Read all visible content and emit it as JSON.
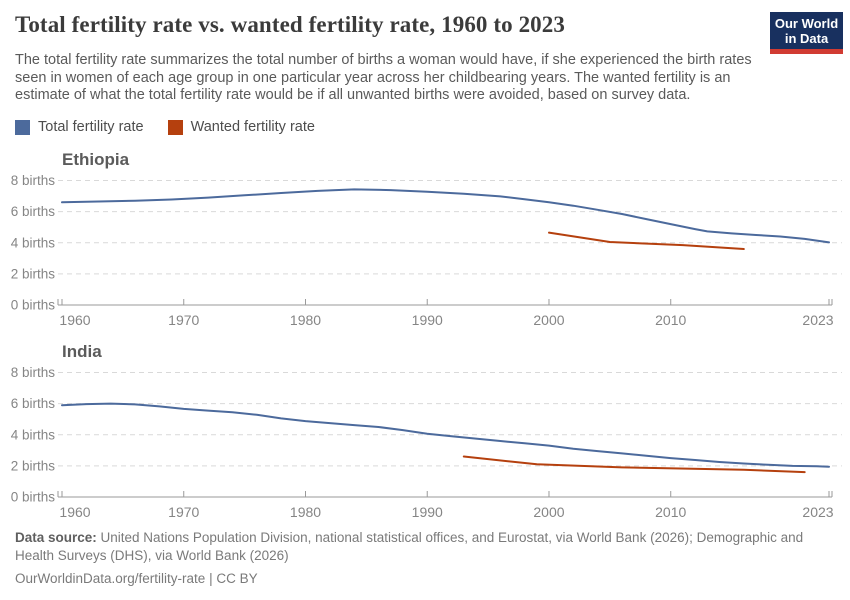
{
  "header": {
    "title": "Total fertility rate vs. wanted fertility rate, 1960 to 2023",
    "subtitle": "The total fertility rate summarizes the total number of births a woman would have, if she experienced the birth rates seen in women of each age group in one particular year across her childbearing years. The wanted fertility is an estimate of what the total fertility rate would be if all unwanted births were avoided, based on survey data.",
    "logo": {
      "line1": "Our World",
      "line2": "in Data",
      "bg_color": "#18305f",
      "bar_color": "#d13b32"
    }
  },
  "legend": [
    {
      "label": "Total fertility rate",
      "color": "#4C6A9C"
    },
    {
      "label": "Wanted fertility rate",
      "color": "#B5400E"
    }
  ],
  "footer": {
    "datasource_label": "Data source:",
    "datasource_text": " United Nations Population Division, national statistical offices, and Eurostat, via World Bank (2026); Demographic and Health Surveys (DHS), via World Bank (2026)",
    "license_text": "OurWorldinData.org/fertility-rate | CC BY"
  },
  "chart_data": [
    {
      "type": "line",
      "title": "Ethiopia",
      "xlabel": "",
      "ylabel": "births",
      "xlim": [
        1960,
        2023
      ],
      "ylim": [
        0,
        8
      ],
      "x_ticks": [
        1960,
        1970,
        1980,
        1990,
        2000,
        2010,
        2023
      ],
      "y_ticks": [
        0,
        2,
        4,
        6,
        8
      ],
      "y_tick_suffix": " births",
      "grid": "dashed-horizontal",
      "legend_position": "top-of-page-shared",
      "series": [
        {
          "name": "Total fertility rate",
          "color": "#4C6A9C",
          "points": [
            [
              1960,
              6.6
            ],
            [
              1963,
              6.65
            ],
            [
              1966,
              6.7
            ],
            [
              1969,
              6.78
            ],
            [
              1972,
              6.9
            ],
            [
              1975,
              7.05
            ],
            [
              1978,
              7.2
            ],
            [
              1981,
              7.33
            ],
            [
              1984,
              7.43
            ],
            [
              1987,
              7.38
            ],
            [
              1990,
              7.28
            ],
            [
              1993,
              7.15
            ],
            [
              1996,
              6.98
            ],
            [
              1998,
              6.8
            ],
            [
              2000,
              6.6
            ],
            [
              2002,
              6.38
            ],
            [
              2004,
              6.12
            ],
            [
              2006,
              5.85
            ],
            [
              2008,
              5.52
            ],
            [
              2010,
              5.2
            ],
            [
              2012,
              4.88
            ],
            [
              2013,
              4.73
            ],
            [
              2015,
              4.6
            ],
            [
              2017,
              4.5
            ],
            [
              2019,
              4.4
            ],
            [
              2021,
              4.25
            ],
            [
              2023,
              4.02
            ]
          ]
        },
        {
          "name": "Wanted fertility rate",
          "color": "#B5400E",
          "points": [
            [
              2000,
              4.65
            ],
            [
              2005,
              4.05
            ],
            [
              2011,
              3.85
            ],
            [
              2016,
              3.6
            ]
          ]
        }
      ]
    },
    {
      "type": "line",
      "title": "India",
      "xlabel": "",
      "ylabel": "births",
      "xlim": [
        1960,
        2023
      ],
      "ylim": [
        0,
        8
      ],
      "x_ticks": [
        1960,
        1970,
        1980,
        1990,
        2000,
        2010,
        2023
      ],
      "y_ticks": [
        0,
        2,
        4,
        6,
        8
      ],
      "y_tick_suffix": " births",
      "grid": "dashed-horizontal",
      "legend_position": "top-of-page-shared",
      "series": [
        {
          "name": "Total fertility rate",
          "color": "#4C6A9C",
          "points": [
            [
              1960,
              5.9
            ],
            [
              1962,
              5.97
            ],
            [
              1964,
              6.0
            ],
            [
              1966,
              5.95
            ],
            [
              1968,
              5.82
            ],
            [
              1970,
              5.66
            ],
            [
              1972,
              5.55
            ],
            [
              1974,
              5.45
            ],
            [
              1976,
              5.28
            ],
            [
              1978,
              5.05
            ],
            [
              1980,
              4.88
            ],
            [
              1982,
              4.75
            ],
            [
              1984,
              4.62
            ],
            [
              1986,
              4.5
            ],
            [
              1988,
              4.3
            ],
            [
              1990,
              4.07
            ],
            [
              1992,
              3.9
            ],
            [
              1994,
              3.75
            ],
            [
              1996,
              3.6
            ],
            [
              1998,
              3.45
            ],
            [
              2000,
              3.3
            ],
            [
              2002,
              3.1
            ],
            [
              2004,
              2.95
            ],
            [
              2006,
              2.8
            ],
            [
              2008,
              2.65
            ],
            [
              2010,
              2.5
            ],
            [
              2012,
              2.38
            ],
            [
              2014,
              2.25
            ],
            [
              2016,
              2.15
            ],
            [
              2018,
              2.07
            ],
            [
              2020,
              2.0
            ],
            [
              2022,
              1.97
            ],
            [
              2023,
              1.95
            ]
          ]
        },
        {
          "name": "Wanted fertility rate",
          "color": "#B5400E",
          "points": [
            [
              1993,
              2.6
            ],
            [
              1999,
              2.1
            ],
            [
              2006,
              1.9
            ],
            [
              2016,
              1.75
            ],
            [
              2021,
              1.6
            ]
          ]
        }
      ]
    }
  ]
}
